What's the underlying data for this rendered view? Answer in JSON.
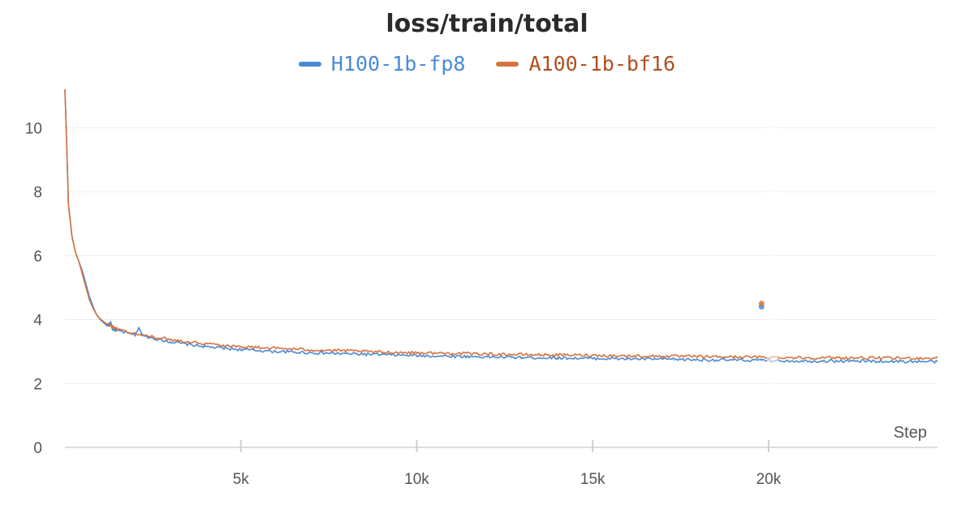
{
  "chart_data": {
    "type": "line",
    "title": "loss/train/total",
    "xlabel": "Step",
    "ylabel": "",
    "xlim": [
      0,
      24800
    ],
    "ylim": [
      0,
      11.2
    ],
    "x_ticks": [
      {
        "value": 5000,
        "label": "5k"
      },
      {
        "value": 10000,
        "label": "10k"
      },
      {
        "value": 15000,
        "label": "15k"
      },
      {
        "value": 20000,
        "label": "20k"
      }
    ],
    "y_ticks": [
      {
        "value": 0,
        "label": "0"
      },
      {
        "value": 2,
        "label": "2"
      },
      {
        "value": 4,
        "label": "4"
      },
      {
        "value": 6,
        "label": "6"
      },
      {
        "value": 8,
        "label": "8"
      },
      {
        "value": 10,
        "label": "10"
      }
    ],
    "grid": true,
    "legend_position": "top-center",
    "series": [
      {
        "name": "H100-1b-fp8",
        "color": "#4a8ad4",
        "legend_color": "#4a8ad4",
        "points": [
          [
            0,
            11.2
          ],
          [
            50,
            9.5
          ],
          [
            100,
            7.6
          ],
          [
            200,
            6.6
          ],
          [
            300,
            6.1
          ],
          [
            400,
            5.8
          ],
          [
            500,
            5.5
          ],
          [
            600,
            5.1
          ],
          [
            700,
            4.7
          ],
          [
            800,
            4.4
          ],
          [
            900,
            4.15
          ],
          [
            1000,
            4.0
          ],
          [
            1100,
            3.9
          ],
          [
            1200,
            3.8
          ],
          [
            1300,
            3.9
          ],
          [
            1350,
            3.7
          ],
          [
            1500,
            3.65
          ],
          [
            1700,
            3.6
          ],
          [
            2000,
            3.52
          ],
          [
            2100,
            3.75
          ],
          [
            2200,
            3.5
          ],
          [
            2500,
            3.42
          ],
          [
            3000,
            3.3
          ],
          [
            3500,
            3.22
          ],
          [
            4000,
            3.15
          ],
          [
            4500,
            3.1
          ],
          [
            5000,
            3.06
          ],
          [
            6000,
            3.0
          ],
          [
            7000,
            2.96
          ],
          [
            8000,
            2.93
          ],
          [
            9000,
            2.9
          ],
          [
            10000,
            2.87
          ],
          [
            11000,
            2.85
          ],
          [
            12000,
            2.83
          ],
          [
            13000,
            2.81
          ],
          [
            14000,
            2.8
          ],
          [
            15000,
            2.78
          ],
          [
            16000,
            2.77
          ],
          [
            17000,
            2.76
          ],
          [
            18000,
            2.74
          ],
          [
            19000,
            2.73
          ],
          [
            19800,
            2.72
          ],
          [
            20500,
            2.71
          ],
          [
            21500,
            2.7
          ],
          [
            22500,
            2.7
          ],
          [
            23500,
            2.69
          ],
          [
            24800,
            2.68
          ]
        ],
        "outlier": [
          19800,
          4.4
        ]
      },
      {
        "name": "A100-1b-bf16",
        "color": "#d6733f",
        "legend_color": "#b34e1e",
        "points": [
          [
            0,
            11.2
          ],
          [
            50,
            9.5
          ],
          [
            100,
            7.6
          ],
          [
            200,
            6.6
          ],
          [
            300,
            6.1
          ],
          [
            400,
            5.8
          ],
          [
            500,
            5.4
          ],
          [
            600,
            5.0
          ],
          [
            700,
            4.6
          ],
          [
            800,
            4.35
          ],
          [
            900,
            4.15
          ],
          [
            1000,
            4.02
          ],
          [
            1200,
            3.85
          ],
          [
            1500,
            3.7
          ],
          [
            2000,
            3.55
          ],
          [
            2500,
            3.45
          ],
          [
            3000,
            3.38
          ],
          [
            3500,
            3.3
          ],
          [
            4000,
            3.25
          ],
          [
            4500,
            3.2
          ],
          [
            5000,
            3.15
          ],
          [
            6000,
            3.1
          ],
          [
            7000,
            3.05
          ],
          [
            8000,
            3.02
          ],
          [
            9000,
            2.98
          ],
          [
            10000,
            2.96
          ],
          [
            11000,
            2.94
          ],
          [
            12000,
            2.92
          ],
          [
            13000,
            2.9
          ],
          [
            14000,
            2.89
          ],
          [
            15000,
            2.88
          ],
          [
            16000,
            2.86
          ],
          [
            17000,
            2.85
          ],
          [
            18000,
            2.84
          ],
          [
            19000,
            2.83
          ],
          [
            19800,
            2.82
          ],
          [
            20500,
            2.81
          ],
          [
            21500,
            2.8
          ],
          [
            22500,
            2.8
          ],
          [
            23500,
            2.79
          ],
          [
            24800,
            2.79
          ]
        ],
        "outlier": [
          19800,
          4.5
        ]
      }
    ]
  }
}
